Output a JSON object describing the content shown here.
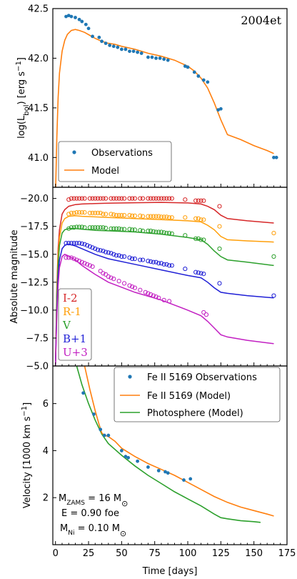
{
  "colors": {
    "obs": "#1f77b4",
    "model": "#ff7f0e",
    "photosphere": "#2ca02c",
    "I": "#d62728",
    "R": "#ff9f0a",
    "V": "#2ca02c",
    "B": "#1f1fd6",
    "U": "#c21fc2"
  },
  "chart_data": [
    {
      "type": "scatter",
      "title": "2004et",
      "xlabel": "",
      "ylabel": "log(L_bol) [erg s^-1]",
      "ylabel_main": "log(L",
      "ylabel_sub": "bol",
      "ylabel_rest": ") [erg s",
      "ylabel_sup": "−1",
      "ylabel_end": "]",
      "xlim": [
        -2,
        175
      ],
      "ylim": [
        40.7,
        42.5
      ],
      "yticks": [
        41.0,
        41.5,
        42.0,
        42.5
      ],
      "yticklabels": [
        "41.0",
        "41.5",
        "42.0",
        "42.5"
      ],
      "legend_position": "lower-left",
      "series": [
        {
          "name": "Observations",
          "kind": "points",
          "x": [
            8,
            10,
            12,
            15,
            18,
            20,
            23,
            25,
            28,
            33,
            35,
            38,
            41,
            44,
            47,
            50,
            53,
            56,
            59,
            62,
            65,
            70,
            73,
            76,
            79,
            82,
            85,
            98,
            100,
            105,
            108,
            112,
            115,
            123,
            125,
            165,
            167
          ],
          "y": [
            42.42,
            42.43,
            42.42,
            42.41,
            42.39,
            42.37,
            42.34,
            42.3,
            42.22,
            42.21,
            42.17,
            42.15,
            42.13,
            42.12,
            42.11,
            42.09,
            42.09,
            42.07,
            42.07,
            42.06,
            42.05,
            42.01,
            42.01,
            42.0,
            42.0,
            41.99,
            41.98,
            41.92,
            41.91,
            41.86,
            41.82,
            41.78,
            41.76,
            41.48,
            41.49,
            41.0,
            41.0
          ]
        },
        {
          "name": "Model",
          "kind": "line",
          "x": [
            0,
            1,
            2,
            3,
            5,
            7,
            9,
            12,
            15,
            18,
            22,
            26,
            30,
            35,
            40,
            45,
            50,
            60,
            70,
            80,
            90,
            100,
            105,
            110,
            115,
            120,
            125,
            130,
            140,
            150,
            160,
            165
          ],
          "y": [
            40.6,
            41.2,
            41.6,
            41.85,
            42.07,
            42.18,
            42.24,
            42.28,
            42.29,
            42.28,
            42.26,
            42.23,
            42.2,
            42.17,
            42.15,
            42.14,
            42.12,
            42.09,
            42.05,
            42.02,
            41.98,
            41.92,
            41.87,
            41.8,
            41.7,
            41.55,
            41.38,
            41.23,
            41.18,
            41.12,
            41.07,
            41.04
          ]
        }
      ]
    },
    {
      "type": "scatter",
      "xlabel": "",
      "ylabel": "Absolute magnitude",
      "xlim": [
        -2,
        175
      ],
      "ylim": [
        -5.0,
        -21.0
      ],
      "yticks": [
        -5.0,
        -7.5,
        -10.0,
        -12.5,
        -15.0,
        -17.5,
        -20.0
      ],
      "yticklabels": [
        "−5.0",
        "−7.5",
        "−10.0",
        "−12.5",
        "−15.0",
        "−17.5",
        "−20.0"
      ],
      "legend_position": "lower-left",
      "legend_labels": [
        "I-2",
        "R-1",
        "V",
        "B+1",
        "U+3"
      ],
      "series": [
        {
          "name": "I-2",
          "color_key": "I",
          "obs_x": [
            10,
            12,
            14,
            16,
            18,
            20,
            22,
            26,
            28,
            30,
            32,
            34,
            36,
            38,
            42,
            44,
            46,
            48,
            50,
            52,
            56,
            58,
            60,
            64,
            66,
            70,
            72,
            74,
            76,
            78,
            80,
            82,
            84,
            86,
            88,
            98,
            106,
            108,
            110,
            112,
            124
          ],
          "obs_y": [
            -19.9,
            -20.0,
            -20.0,
            -20.0,
            -20.0,
            -20.0,
            -20.0,
            -20.0,
            -20.0,
            -20.0,
            -20.0,
            -20.0,
            -20.0,
            -20.0,
            -20.0,
            -20.0,
            -20.0,
            -20.0,
            -20.0,
            -20.0,
            -20.0,
            -20.0,
            -20.0,
            -20.0,
            -20.0,
            -20.0,
            -20.0,
            -20.0,
            -20.0,
            -20.0,
            -20.0,
            -20.0,
            -20.0,
            -20.0,
            -20.0,
            -19.9,
            -19.8,
            -19.8,
            -19.8,
            -19.8,
            -19.3
          ],
          "model_x": [
            0,
            1,
            2,
            3,
            5,
            7,
            10,
            15,
            20,
            30,
            40,
            60,
            80,
            100,
            110,
            115,
            120,
            125,
            130,
            145,
            165
          ],
          "model_y": [
            -5.0,
            -12.0,
            -15.5,
            -17.2,
            -18.6,
            -19.0,
            -19.3,
            -19.45,
            -19.5,
            -19.55,
            -19.58,
            -19.62,
            -19.65,
            -19.6,
            -19.5,
            -19.3,
            -19.0,
            -18.5,
            -18.2,
            -18.0,
            -17.8
          ]
        },
        {
          "name": "R-1",
          "color_key": "R",
          "obs_x": [
            10,
            12,
            14,
            16,
            18,
            20,
            22,
            26,
            28,
            30,
            32,
            34,
            36,
            38,
            42,
            44,
            46,
            48,
            50,
            52,
            56,
            58,
            60,
            64,
            66,
            70,
            72,
            74,
            76,
            78,
            80,
            82,
            84,
            86,
            88,
            98,
            106,
            108,
            110,
            112,
            124,
            165
          ],
          "obs_y": [
            -18.6,
            -18.7,
            -18.7,
            -18.75,
            -18.75,
            -18.75,
            -18.75,
            -18.7,
            -18.7,
            -18.7,
            -18.7,
            -18.7,
            -18.6,
            -18.6,
            -18.6,
            -18.55,
            -18.5,
            -18.5,
            -18.5,
            -18.5,
            -18.5,
            -18.45,
            -18.45,
            -18.45,
            -18.4,
            -18.4,
            -18.4,
            -18.4,
            -18.4,
            -18.4,
            -18.35,
            -18.35,
            -18.35,
            -18.3,
            -18.3,
            -18.3,
            -18.2,
            -18.2,
            -18.1,
            -18.1,
            -17.5,
            -16.9
          ],
          "model_x": [
            0,
            1,
            2,
            3,
            5,
            7,
            10,
            15,
            20,
            30,
            40,
            60,
            80,
            100,
            110,
            115,
            120,
            125,
            130,
            145,
            165
          ],
          "model_y": [
            -5.0,
            -11.5,
            -14.8,
            -16.5,
            -17.8,
            -18.2,
            -18.4,
            -18.45,
            -18.4,
            -18.35,
            -18.3,
            -18.2,
            -18.1,
            -18.0,
            -17.9,
            -17.6,
            -17.2,
            -16.6,
            -16.3,
            -16.2,
            -16.1
          ]
        },
        {
          "name": "V",
          "color_key": "V",
          "obs_x": [
            10,
            12,
            14,
            16,
            18,
            20,
            22,
            26,
            28,
            30,
            32,
            34,
            36,
            38,
            42,
            44,
            46,
            48,
            50,
            52,
            56,
            58,
            60,
            64,
            66,
            70,
            72,
            74,
            76,
            78,
            80,
            82,
            84,
            86,
            88,
            98,
            106,
            108,
            110,
            112,
            124,
            165
          ],
          "obs_y": [
            -17.3,
            -17.4,
            -17.4,
            -17.45,
            -17.45,
            -17.45,
            -17.4,
            -17.4,
            -17.4,
            -17.4,
            -17.4,
            -17.4,
            -17.4,
            -17.35,
            -17.3,
            -17.3,
            -17.3,
            -17.3,
            -17.25,
            -17.25,
            -17.25,
            -17.2,
            -17.2,
            -17.15,
            -17.1,
            -17.1,
            -17.1,
            -17.05,
            -17.0,
            -17.0,
            -17.0,
            -16.95,
            -16.9,
            -16.9,
            -16.85,
            -16.7,
            -16.4,
            -16.4,
            -16.3,
            -16.3,
            -15.5,
            -14.8
          ],
          "model_x": [
            0,
            1,
            2,
            3,
            5,
            7,
            10,
            15,
            20,
            30,
            40,
            60,
            80,
            100,
            110,
            115,
            120,
            125,
            130,
            145,
            165
          ],
          "model_y": [
            -5.0,
            -11.0,
            -14.0,
            -15.8,
            -16.9,
            -17.2,
            -17.3,
            -17.3,
            -17.25,
            -17.15,
            -17.1,
            -17.0,
            -16.8,
            -16.5,
            -16.3,
            -15.9,
            -15.3,
            -14.8,
            -14.5,
            -14.3,
            -14.0
          ]
        },
        {
          "name": "B+1",
          "color_key": "B",
          "obs_x": [
            8,
            10,
            12,
            14,
            16,
            18,
            20,
            22,
            24,
            26,
            28,
            30,
            32,
            34,
            36,
            38,
            40,
            42,
            44,
            46,
            48,
            50,
            52,
            56,
            58,
            60,
            64,
            66,
            70,
            72,
            74,
            76,
            78,
            80,
            82,
            84,
            86,
            88,
            98,
            106,
            108,
            110,
            112,
            124,
            165
          ],
          "obs_y": [
            -16.0,
            -16.0,
            -16.0,
            -16.0,
            -16.0,
            -16.0,
            -15.95,
            -15.9,
            -15.8,
            -15.7,
            -15.6,
            -15.5,
            -15.4,
            -15.35,
            -15.3,
            -15.2,
            -15.15,
            -15.1,
            -15.0,
            -14.9,
            -14.9,
            -14.8,
            -14.8,
            -14.7,
            -14.6,
            -14.6,
            -14.5,
            -14.5,
            -14.4,
            -14.35,
            -14.3,
            -14.3,
            -14.2,
            -14.2,
            -14.1,
            -14.1,
            -14.0,
            -14.0,
            -13.7,
            -13.4,
            -13.35,
            -13.3,
            -13.25,
            -12.4,
            -11.3
          ],
          "model_x": [
            0,
            1,
            2,
            3,
            5,
            7,
            9,
            12,
            15,
            20,
            30,
            40,
            60,
            80,
            100,
            110,
            115,
            120,
            125,
            130,
            145,
            165
          ],
          "model_y": [
            -5.0,
            -10.0,
            -13.0,
            -14.5,
            -15.5,
            -15.8,
            -15.9,
            -15.85,
            -15.75,
            -15.5,
            -15.0,
            -14.6,
            -14.1,
            -13.6,
            -13.1,
            -12.9,
            -12.5,
            -12.0,
            -11.6,
            -11.5,
            -11.3,
            -11.1
          ]
        },
        {
          "name": "U+3",
          "color_key": "U",
          "obs_x": [
            8,
            10,
            12,
            14,
            16,
            18,
            20,
            22,
            24,
            26,
            28,
            34,
            36,
            38,
            40,
            42,
            44,
            48,
            52,
            56,
            58,
            60,
            64,
            68,
            70,
            72,
            74,
            76,
            78,
            82,
            86,
            112,
            114
          ],
          "obs_y": [
            -14.7,
            -14.7,
            -14.7,
            -14.6,
            -14.5,
            -14.4,
            -14.3,
            -14.2,
            -14.1,
            -14.0,
            -13.9,
            -13.5,
            -13.3,
            -13.2,
            -13.0,
            -12.9,
            -12.8,
            -12.6,
            -12.4,
            -12.2,
            -12.1,
            -12.0,
            -11.8,
            -11.6,
            -11.5,
            -11.4,
            -11.3,
            -11.2,
            -11.1,
            -10.9,
            -10.8,
            -9.8,
            -9.6
          ],
          "model_x": [
            0,
            1,
            2,
            3,
            5,
            7,
            9,
            12,
            15,
            20,
            30,
            40,
            60,
            80,
            100,
            110,
            115,
            120,
            125,
            130,
            145,
            165
          ],
          "model_y": [
            -5.0,
            -9.5,
            -12.2,
            -13.8,
            -14.8,
            -15.0,
            -14.9,
            -14.7,
            -14.5,
            -14.0,
            -13.2,
            -12.5,
            -11.6,
            -10.9,
            -10.0,
            -9.5,
            -9.0,
            -8.4,
            -7.8,
            -7.6,
            -7.3,
            -7.0
          ]
        }
      ]
    },
    {
      "type": "scatter",
      "xlabel": "Time [days]",
      "ylabel": "Velocity [1000 km s^-1]",
      "ylabel_main": "Velocity [1000 km  s",
      "ylabel_sup": "−1",
      "ylabel_end": "]",
      "xlim": [
        -2,
        175
      ],
      "ylim": [
        0,
        7.6
      ],
      "yticks": [
        2,
        4,
        6
      ],
      "yticklabels": [
        "2",
        "4",
        "6"
      ],
      "xticks": [
        0,
        25,
        50,
        75,
        100,
        125,
        150,
        175
      ],
      "xticklabels": [
        "0",
        "25",
        "50",
        "75",
        "100",
        "125",
        "150",
        "175"
      ],
      "legend_position": "top-right",
      "series": [
        {
          "name": "Fe II 5169 Observations",
          "kind": "points",
          "x": [
            21,
            29,
            34,
            37,
            40,
            50,
            53,
            55,
            62,
            70,
            78,
            83,
            85,
            97,
            102
          ],
          "y": [
            6.45,
            5.55,
            4.9,
            4.65,
            4.65,
            4.0,
            3.75,
            3.7,
            3.55,
            3.3,
            3.15,
            3.1,
            3.05,
            2.75,
            2.8
          ]
        },
        {
          "name": "Fe II 5169 (Model)",
          "kind": "line",
          "x": [
            22,
            26,
            30,
            33,
            35,
            37,
            40,
            45,
            50,
            60,
            70,
            80,
            90,
            100,
            110,
            120,
            130,
            140,
            150,
            160,
            165
          ],
          "y": [
            7.6,
            6.6,
            5.7,
            5.1,
            4.75,
            4.65,
            4.6,
            4.4,
            4.1,
            3.75,
            3.45,
            3.2,
            2.95,
            2.65,
            2.35,
            2.05,
            1.8,
            1.6,
            1.45,
            1.3,
            1.22
          ]
        },
        {
          "name": "Photosphere (Model)",
          "kind": "line",
          "x": [
            16,
            20,
            25,
            30,
            35,
            40,
            50,
            60,
            70,
            80,
            90,
            100,
            110,
            120,
            125,
            130,
            140,
            150,
            155
          ],
          "y": [
            7.6,
            6.8,
            6.0,
            5.3,
            4.7,
            4.3,
            3.8,
            3.35,
            2.95,
            2.6,
            2.25,
            1.95,
            1.65,
            1.3,
            1.15,
            1.1,
            1.02,
            0.98,
            0.95
          ]
        }
      ],
      "annotation": {
        "line1_main": "M",
        "line1_sub": "ZAMS",
        "line1_rest": " = 16 M",
        "line1_sym": "⊙",
        "line2": "E = 0.90 foe",
        "line3_main": "M",
        "line3_sub": "Ni",
        "line3_rest": " = 0.10 M",
        "line3_sym": "⊙"
      }
    }
  ]
}
